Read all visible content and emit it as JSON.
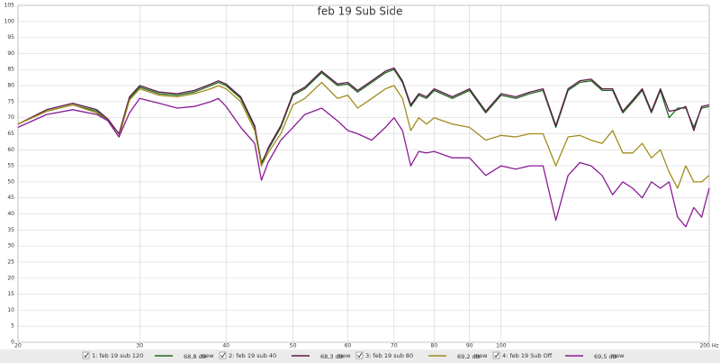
{
  "chart_data": {
    "type": "line",
    "title": "feb 19 Sub Side",
    "x": [
      20,
      22,
      24,
      26,
      27,
      28,
      29,
      30,
      32,
      34,
      36,
      38,
      39,
      40,
      42,
      44,
      45,
      46,
      48,
      50,
      52,
      55,
      58,
      60,
      62,
      65,
      68,
      70,
      72,
      74,
      76,
      78,
      80,
      85,
      90,
      95,
      100,
      105,
      110,
      115,
      120,
      125,
      130,
      135,
      140,
      145,
      150,
      155,
      160,
      165,
      170,
      175,
      180,
      185,
      190,
      195,
      200
    ],
    "series": [
      {
        "name": "1: feb 19 sub 120",
        "color": "#1f6b1f",
        "level": "68,8 dB",
        "tag": "new",
        "values": [
          68,
          72,
          74,
          72,
          69,
          64,
          76,
          79.5,
          77.5,
          77,
          78,
          80,
          81,
          80,
          76,
          67,
          56,
          60,
          67,
          77,
          79,
          84,
          80,
          80.5,
          78,
          81,
          84,
          85,
          81,
          73.5,
          77,
          76,
          78.5,
          76,
          78.5,
          71.5,
          77,
          76,
          77.5,
          78.5,
          67,
          78.5,
          81,
          81.5,
          78.5,
          78.5,
          71.5,
          75,
          78.5,
          71.5,
          78.5,
          70,
          73,
          73,
          67,
          73,
          73.5
        ]
      },
      {
        "name": "2: feb 19 sub 40",
        "color": "#5c1a48",
        "level": "68,3 dB",
        "tag": "new",
        "values": [
          68,
          72.5,
          74.5,
          72.5,
          69.5,
          65,
          76.5,
          80,
          78,
          77.5,
          78.5,
          80.5,
          81.5,
          80.5,
          76.5,
          67.5,
          55,
          60.5,
          67.5,
          77.5,
          79.5,
          84.5,
          80.5,
          81,
          78.5,
          81.5,
          84.5,
          85.5,
          81.5,
          74,
          77.5,
          76.5,
          79,
          76.5,
          79,
          72,
          77.5,
          76.5,
          78,
          79,
          67.5,
          79,
          81.5,
          82,
          79,
          79,
          72,
          75.5,
          79,
          72,
          79,
          72,
          72.5,
          73.5,
          66,
          73.5,
          74
        ]
      },
      {
        "name": "3: feb 19 sub 80",
        "color": "#a08c1c",
        "level": "69,2 dB",
        "tag": "new",
        "values": [
          68,
          72,
          74,
          71.5,
          69,
          64,
          75.5,
          79,
          77,
          76.5,
          77.5,
          79,
          80,
          79,
          75,
          66,
          55,
          59,
          65,
          74,
          76,
          81,
          76,
          77,
          73,
          76,
          79,
          80,
          76,
          66,
          70,
          68,
          70,
          68,
          67,
          63,
          64.5,
          64,
          65,
          65,
          55,
          64,
          64.5,
          63,
          62,
          66,
          59,
          59,
          62,
          57.5,
          60,
          53,
          48,
          55,
          50,
          50,
          52
        ]
      },
      {
        "name": "4: feb 19 Sub Off",
        "color": "#8a1a96",
        "level": "69,5 dB",
        "tag": "new",
        "values": [
          67,
          71,
          72.5,
          71,
          69,
          64,
          71.5,
          76,
          74.5,
          73,
          73.5,
          75,
          76,
          73.5,
          67,
          62,
          50.5,
          56,
          63,
          67,
          71,
          73,
          69,
          66,
          65,
          63,
          67,
          70,
          66,
          55,
          59.5,
          59,
          59.5,
          57.5,
          57.5,
          52,
          55,
          54,
          55,
          55,
          38,
          52,
          56,
          55,
          52,
          46,
          50,
          48,
          45,
          50,
          48,
          50,
          39,
          36,
          42,
          39,
          48
        ]
      }
    ],
    "xlim": [
      20,
      200
    ],
    "log_x": true,
    "xticks": [
      20,
      30,
      40,
      50,
      60,
      70,
      80,
      90,
      {
        "value": 100,
        "label": "100"
      },
      {
        "value": 200,
        "label": "200 Hz"
      }
    ],
    "ylim": [
      0,
      105
    ],
    "yticks": [
      0,
      5,
      10,
      15,
      20,
      25,
      30,
      35,
      40,
      45,
      50,
      55,
      60,
      65,
      70,
      75,
      80,
      85,
      90,
      95,
      100,
      105
    ],
    "grid": true
  }
}
